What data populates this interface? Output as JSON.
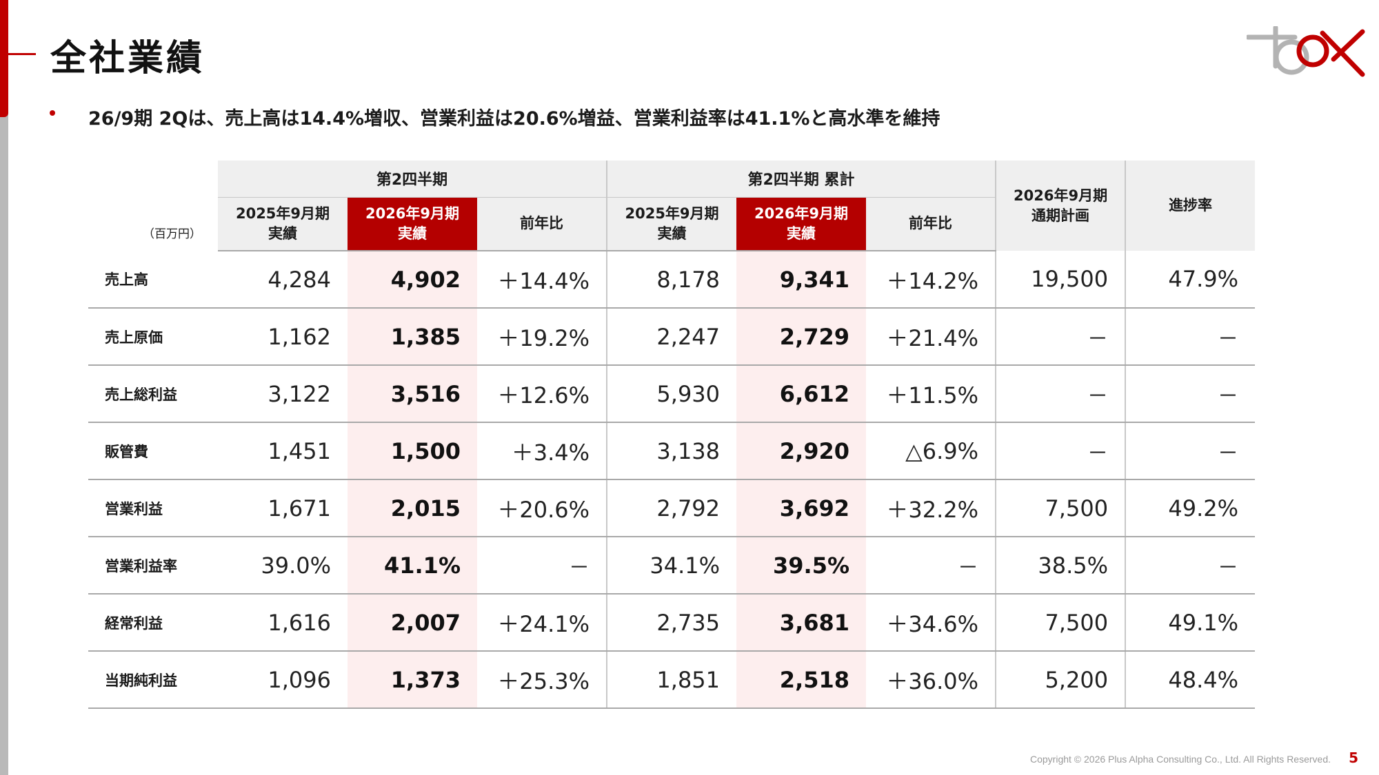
{
  "page": {
    "title": "全社業績",
    "summary": "26/9期 2Qは、売上高は14.4%増収、営業利益は20.6%増益、営業利益率は41.1%と高水準を維持",
    "copyright": "Copyright © 2026 Plus Alpha Consulting Co., Ltd. All Rights Reserved.",
    "page_number": "5",
    "accent_color": "#c00000"
  },
  "table": {
    "unit": "（百万円）",
    "group_quarter": "第2四半期",
    "group_cumulative": "第2四半期 累計",
    "col_plan_line1": "2026年9月期",
    "col_plan_line2": "通期計画",
    "col_progress": "進捗率",
    "sub": {
      "prev_line1": "2025年9月期",
      "prev_line2": "実績",
      "curr_line1": "2026年9月期",
      "curr_line2": "実績",
      "yoy": "前年比"
    },
    "rows": [
      {
        "label": "売上高",
        "q_prev": "4,284",
        "q_curr": "4,902",
        "q_yoy": "＋14.4%",
        "c_prev": "8,178",
        "c_curr": "9,341",
        "c_yoy": "＋14.2%",
        "plan": "19,500",
        "progress": "47.9%"
      },
      {
        "label": "売上原価",
        "q_prev": "1,162",
        "q_curr": "1,385",
        "q_yoy": "＋19.2%",
        "c_prev": "2,247",
        "c_curr": "2,729",
        "c_yoy": "＋21.4%",
        "plan": "－",
        "progress": "－"
      },
      {
        "label": "売上総利益",
        "q_prev": "3,122",
        "q_curr": "3,516",
        "q_yoy": "＋12.6%",
        "c_prev": "5,930",
        "c_curr": "6,612",
        "c_yoy": "＋11.5%",
        "plan": "－",
        "progress": "－"
      },
      {
        "label": "販管費",
        "q_prev": "1,451",
        "q_curr": "1,500",
        "q_yoy": "＋3.4%",
        "c_prev": "3,138",
        "c_curr": "2,920",
        "c_yoy": "△6.9%",
        "plan": "－",
        "progress": "－"
      },
      {
        "label": "営業利益",
        "q_prev": "1,671",
        "q_curr": "2,015",
        "q_yoy": "＋20.6%",
        "c_prev": "2,792",
        "c_curr": "3,692",
        "c_yoy": "＋32.2%",
        "plan": "7,500",
        "progress": "49.2%"
      },
      {
        "label": "営業利益率",
        "q_prev": "39.0%",
        "q_curr": "41.1%",
        "q_yoy": "－",
        "c_prev": "34.1%",
        "c_curr": "39.5%",
        "c_yoy": "－",
        "plan": "38.5%",
        "progress": "－"
      },
      {
        "label": "経常利益",
        "q_prev": "1,616",
        "q_curr": "2,007",
        "q_yoy": "＋24.1%",
        "c_prev": "2,735",
        "c_curr": "3,681",
        "c_yoy": "＋34.6%",
        "plan": "7,500",
        "progress": "49.1%"
      },
      {
        "label": "当期純利益",
        "q_prev": "1,096",
        "q_curr": "1,373",
        "q_yoy": "＋25.3%",
        "c_prev": "1,851",
        "c_curr": "2,518",
        "c_yoy": "＋36.0%",
        "plan": "5,200",
        "progress": "48.4%"
      }
    ]
  }
}
